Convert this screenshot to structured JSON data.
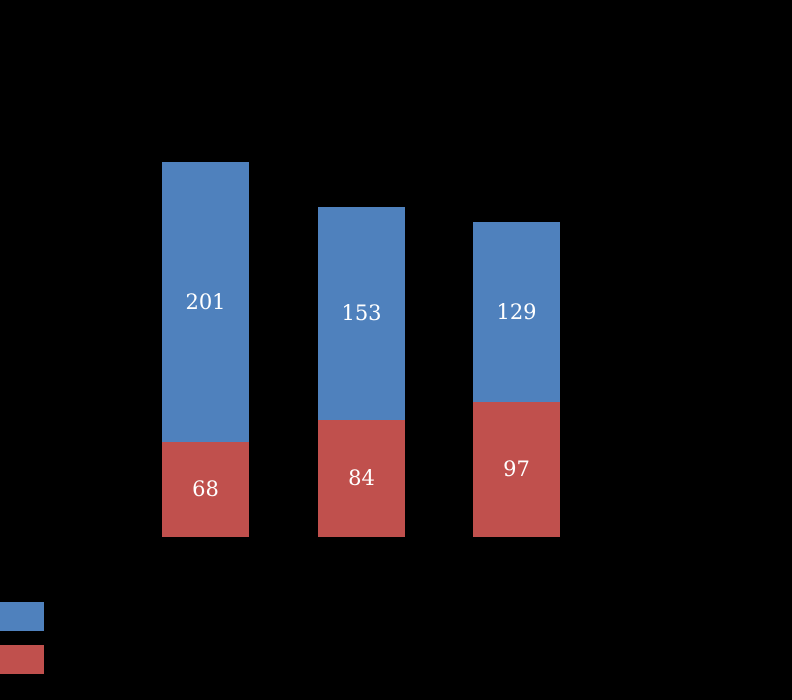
{
  "chart_data": {
    "type": "bar",
    "stacked": true,
    "orientation": "vertical",
    "background": "#000000",
    "categories": [
      "",
      "",
      ""
    ],
    "series": [
      {
        "name": "red-bottom-series",
        "color": "#C0504D",
        "values": [
          68,
          84,
          97
        ]
      },
      {
        "name": "blue-top-series",
        "color": "#4F81BD",
        "values": [
          201,
          153,
          129
        ]
      }
    ],
    "totals": [
      269,
      237,
      226
    ],
    "data_labels": {
      "visible": true,
      "color": "#FFFFFF",
      "values_blue": [
        "201",
        "153",
        "129"
      ],
      "values_red": [
        "68",
        "84",
        "97"
      ]
    },
    "legend": {
      "position": "bottom-left",
      "items": [
        {
          "swatch_color": "#4F81BD",
          "label": ""
        },
        {
          "swatch_color": "#C0504D",
          "label": ""
        }
      ]
    },
    "title": "",
    "xlabel": "",
    "ylabel": "",
    "grid": false,
    "axes_visible": false
  }
}
